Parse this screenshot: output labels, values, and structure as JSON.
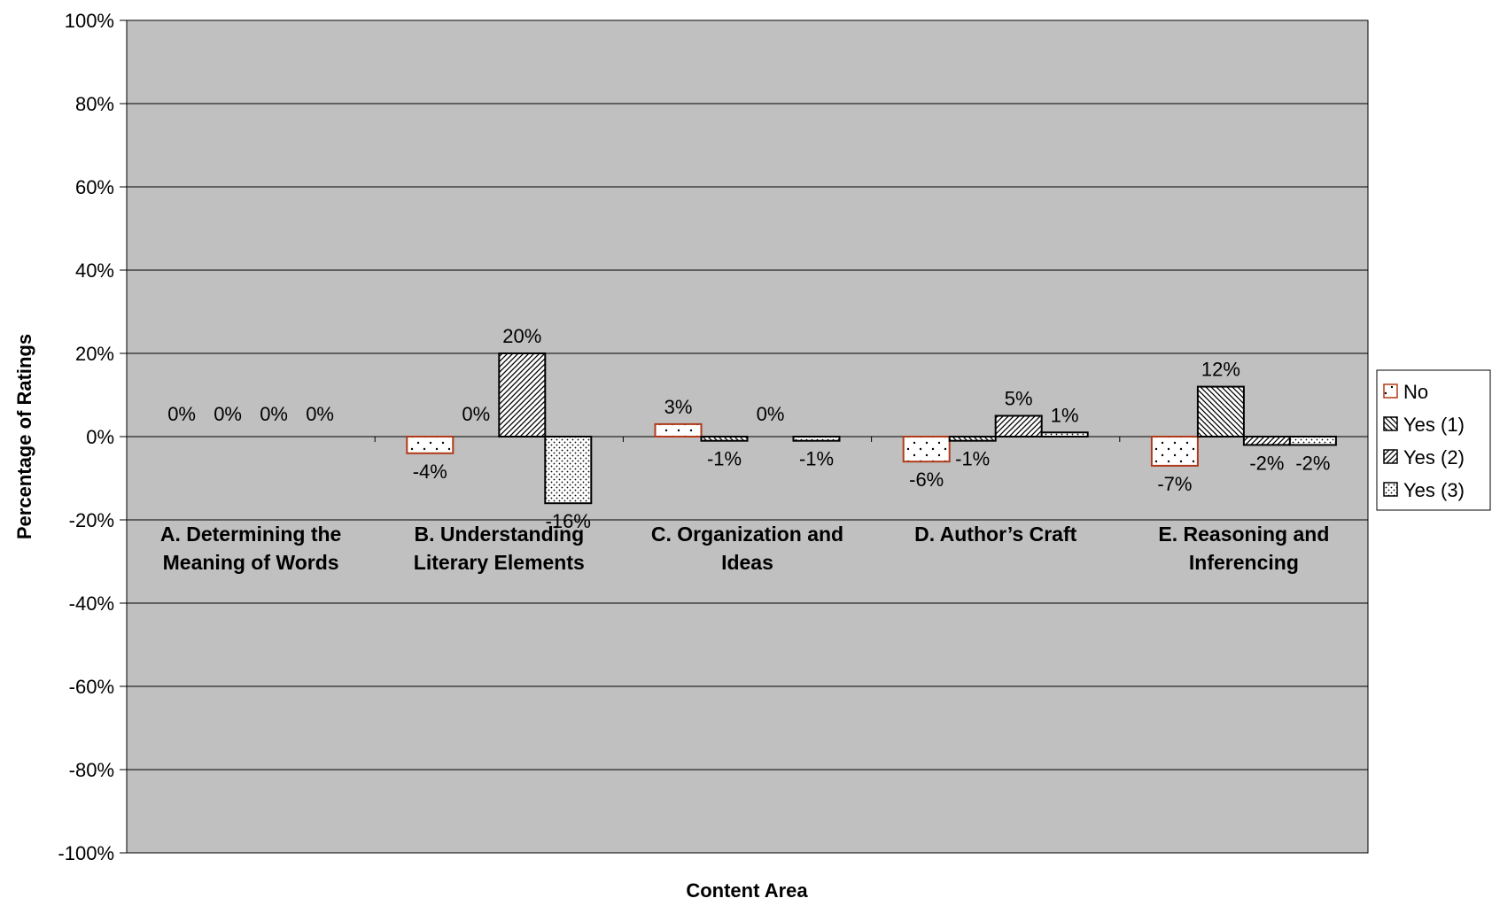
{
  "chart_data": {
    "type": "bar",
    "title": "",
    "xlabel": "Content Area",
    "ylabel": "Percentage of Ratings",
    "ylim": [
      -100,
      100
    ],
    "yticks": [
      100,
      80,
      60,
      40,
      20,
      0,
      -20,
      -40,
      -60,
      -80,
      -100
    ],
    "ytick_labels": [
      "100%",
      "80%",
      "60%",
      "40%",
      "20%",
      "0%",
      "-20%",
      "-40%",
      "-60%",
      "-80%",
      "-100%"
    ],
    "grid": true,
    "plot_background": "#c0c0c0",
    "legend_position": "right",
    "categories": [
      [
        "A. Determining the",
        "Meaning of Words"
      ],
      [
        "B. Understanding",
        "Literary Elements"
      ],
      [
        "C. Organization and",
        "Ideas"
      ],
      [
        "D. Author’s Craft"
      ],
      [
        "E. Reasoning and",
        "Inferencing"
      ]
    ],
    "series": [
      {
        "name": "No",
        "pattern": "dots-sparse",
        "stroke": "#b03a1a",
        "fill": "#ffffff",
        "values": [
          0,
          -4,
          3,
          -6,
          -7
        ],
        "labels": [
          "0%",
          "-4%",
          "3%",
          "-6%",
          "-7%"
        ]
      },
      {
        "name": "Yes (1)",
        "pattern": "diag-back",
        "stroke": "#000000",
        "fill": "#ffffff",
        "values": [
          0,
          0,
          -1,
          -1,
          12
        ],
        "labels": [
          "0%",
          "0%",
          "-1%",
          "-1%",
          "12%"
        ]
      },
      {
        "name": "Yes (2)",
        "pattern": "diag-fwd",
        "stroke": "#000000",
        "fill": "#ffffff",
        "values": [
          0,
          20,
          0,
          5,
          -2
        ],
        "labels": [
          "0%",
          "20%",
          "0%",
          "5%",
          "-2%"
        ]
      },
      {
        "name": "Yes (3)",
        "pattern": "dots-dense",
        "stroke": "#000000",
        "fill": "#ffffff",
        "values": [
          0,
          -16,
          -1,
          1,
          -2
        ],
        "labels": [
          "0%",
          "-16%",
          "-1%",
          "1%",
          "-2%"
        ]
      }
    ]
  }
}
